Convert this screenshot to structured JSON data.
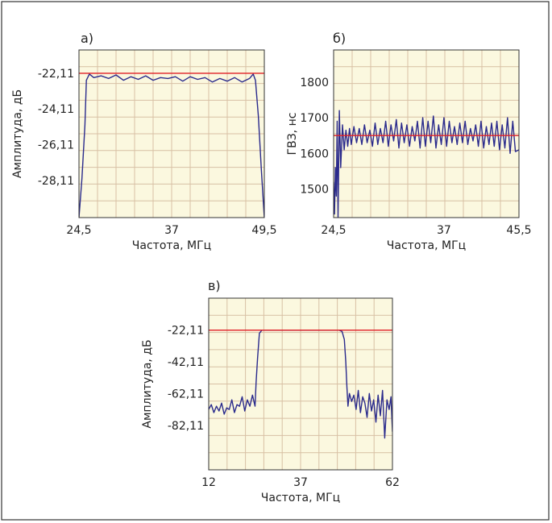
{
  "colors": {
    "plot_background": "#fbf8df",
    "grid": "#d8c0a4",
    "signal_line": "#2a2a8c",
    "reference_line": "#e01e25",
    "axis_text": "#222222",
    "frame": "#333333"
  },
  "chart_data": [
    {
      "type": "line",
      "panel_label": "а)",
      "xlabel": "Частота, МГц",
      "ylabel": "Амплитуда, дБ",
      "xlim": [
        24.5,
        49.5
      ],
      "ylim": [
        -30.2,
        -20.8
      ],
      "x_ticks": [
        24.5,
        37,
        49.5
      ],
      "x_tick_labels": [
        "24,5",
        "37",
        "49,5"
      ],
      "y_ticks": [
        -22.11,
        -24.11,
        -26.11,
        -28.11
      ],
      "y_tick_labels": [
        "-22,11",
        "-24,11",
        "-26,11",
        "-28,11"
      ],
      "grid": true,
      "reference_line": {
        "y": -22.11
      },
      "series": [
        {
          "x": [
            24.5,
            24.9,
            25.3,
            25.5,
            25.9,
            26.5,
            27.5,
            28.5,
            29.5,
            30.5,
            31.5,
            32.5,
            33.5,
            34.5,
            35.5,
            36.5,
            37.5,
            38.5,
            39.5,
            40.5,
            41.5,
            42.5,
            43.5,
            44.5,
            45.5,
            46.5,
            47.5,
            48.0,
            48.3,
            48.7,
            49.1,
            49.5
          ],
          "y": [
            -30.2,
            -28.0,
            -25.0,
            -22.5,
            -22.15,
            -22.35,
            -22.25,
            -22.4,
            -22.2,
            -22.5,
            -22.3,
            -22.45,
            -22.25,
            -22.5,
            -22.35,
            -22.4,
            -22.3,
            -22.55,
            -22.3,
            -22.45,
            -22.35,
            -22.6,
            -22.4,
            -22.55,
            -22.35,
            -22.6,
            -22.4,
            -22.15,
            -22.5,
            -24.5,
            -27.5,
            -30.2
          ]
        }
      ]
    },
    {
      "type": "line",
      "panel_label": "б)",
      "xlabel": "Частота, МГц",
      "ylabel": "ГВЗ, нс",
      "xlim": [
        24.5,
        45.5
      ],
      "ylim": [
        1420,
        1890
      ],
      "x_ticks": [
        24.5,
        37,
        45.5
      ],
      "x_tick_labels": [
        "24,5",
        "37",
        "45,5"
      ],
      "y_ticks": [
        1800,
        1700,
        1600,
        1500
      ],
      "y_tick_labels": [
        "1800",
        "1700",
        "1600",
        "1500"
      ],
      "grid": true,
      "reference_line": {
        "y": 1650
      },
      "series": [
        {
          "x": [
            24.5,
            24.6,
            24.7,
            24.8,
            24.9,
            25.0,
            25.15,
            25.3,
            25.5,
            25.7,
            25.9,
            26.1,
            26.3,
            26.5,
            26.8,
            27.1,
            27.4,
            27.7,
            28.0,
            28.3,
            28.6,
            28.9,
            29.2,
            29.5,
            29.8,
            30.1,
            30.4,
            30.7,
            31.0,
            31.3,
            31.6,
            31.9,
            32.2,
            32.5,
            32.8,
            33.1,
            33.4,
            33.7,
            34.0,
            34.3,
            34.6,
            34.9,
            35.2,
            35.5,
            35.8,
            36.1,
            36.4,
            36.7,
            37.0,
            37.3,
            37.6,
            37.9,
            38.2,
            38.5,
            38.8,
            39.1,
            39.4,
            39.7,
            40.0,
            40.3,
            40.6,
            40.9,
            41.2,
            41.5,
            41.8,
            42.1,
            42.4,
            42.7,
            43.0,
            43.3,
            43.6,
            43.9,
            44.2,
            44.5,
            44.8,
            45.1,
            45.5
          ],
          "y": [
            1520,
            1430,
            1560,
            1480,
            1690,
            1420,
            1720,
            1560,
            1680,
            1610,
            1665,
            1620,
            1670,
            1625,
            1675,
            1630,
            1670,
            1625,
            1680,
            1630,
            1665,
            1620,
            1685,
            1625,
            1670,
            1630,
            1690,
            1620,
            1680,
            1635,
            1695,
            1615,
            1685,
            1630,
            1680,
            1620,
            1675,
            1635,
            1690,
            1615,
            1700,
            1620,
            1690,
            1630,
            1705,
            1615,
            1680,
            1625,
            1700,
            1620,
            1690,
            1630,
            1675,
            1625,
            1685,
            1630,
            1690,
            1625,
            1670,
            1635,
            1680,
            1620,
            1690,
            1615,
            1675,
            1625,
            1685,
            1620,
            1690,
            1610,
            1680,
            1615,
            1700,
            1600,
            1690,
            1605,
            1610
          ]
        }
      ]
    },
    {
      "type": "line",
      "panel_label": "в)",
      "xlabel": "Частота, МГц",
      "ylabel": "Амплитуда, дБ",
      "xlim": [
        12,
        62
      ],
      "ylim": [
        -110,
        -2
      ],
      "x_ticks": [
        12,
        37,
        62
      ],
      "x_tick_labels": [
        "12",
        "37",
        "62"
      ],
      "y_ticks": [
        -22.11,
        -42.11,
        -62.11,
        -82.11
      ],
      "y_tick_labels": [
        "-22,11",
        "-42,11",
        "-62,11",
        "-82,11"
      ],
      "grid": true,
      "reference_line": {
        "y": -22.11
      },
      "series": [
        {
          "x": [
            12,
            12.7,
            13.4,
            14.1,
            14.8,
            15.5,
            16.2,
            16.9,
            17.6,
            18.3,
            19.0,
            19.7,
            20.4,
            21.1,
            21.8,
            22.5,
            23.2,
            23.9,
            24.3,
            24.6,
            24.9,
            25.3,
            25.8,
            26.5,
            27.5,
            28.5,
            29.5,
            30.5,
            31.5,
            32.5,
            33.5,
            34.5,
            35.5,
            36.5,
            37.5,
            38.5,
            39.5,
            40.5,
            41.5,
            42.5,
            43.5,
            44.5,
            45.5,
            46.5,
            47.5,
            48.3,
            48.9,
            49.3,
            49.6,
            49.9,
            50.3,
            50.9,
            51.5,
            52.1,
            52.7,
            53.3,
            53.9,
            54.5,
            55.1,
            55.7,
            56.3,
            56.9,
            57.5,
            58.1,
            58.7,
            59.3,
            59.9,
            60.5,
            61.1,
            61.6,
            62.0
          ],
          "y": [
            -72,
            -69,
            -74,
            -70,
            -73,
            -68,
            -75,
            -71,
            -72,
            -66,
            -74,
            -69,
            -70,
            -64,
            -73,
            -66,
            -70,
            -63,
            -67,
            -70,
            -55,
            -40,
            -24,
            -22.11,
            -22.11,
            -22.11,
            -22.11,
            -22.11,
            -22.11,
            -22.11,
            -22.11,
            -22.11,
            -22.11,
            -22.11,
            -22.11,
            -22.11,
            -22.11,
            -22.11,
            -22.11,
            -22.11,
            -22.11,
            -22.11,
            -22.11,
            -22.11,
            -22.11,
            -23,
            -28,
            -42,
            -58,
            -70,
            -62,
            -67,
            -63,
            -72,
            -60,
            -74,
            -64,
            -68,
            -77,
            -62,
            -73,
            -66,
            -80,
            -63,
            -76,
            -60,
            -90,
            -66,
            -72,
            -64,
            -86
          ]
        }
      ]
    }
  ]
}
